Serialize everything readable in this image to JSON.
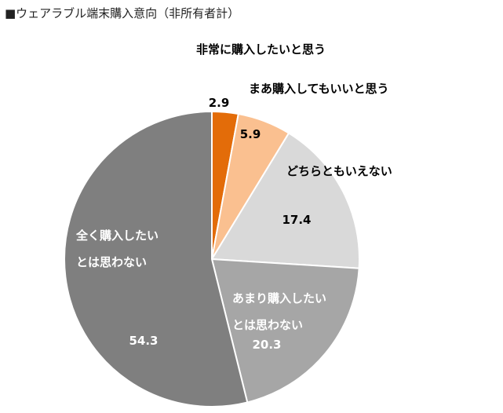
{
  "title": "■ウェアラブル端末購入意向（非所有者計）",
  "chart_data": {
    "type": "pie",
    "title": "■ウェアラブル端末購入意向（非所有者計）",
    "start": "12 o'clock, clockwise",
    "legend": "none (labels on/around slices)",
    "slices": [
      {
        "name": "非常に購入したいと思う",
        "value": 2.9,
        "color": "#e36c09",
        "label_lines": [
          "非常に購入したいと思う"
        ],
        "label_color": "#000000"
      },
      {
        "name": "まあ購入してもいいと思う",
        "value": 5.9,
        "color": "#fac090",
        "label_lines": [
          "まあ購入してもいいと思う"
        ],
        "label_color": "#000000"
      },
      {
        "name": "どちらともいえない",
        "value": 17.4,
        "color": "#d9d9d9",
        "label_lines": [
          "どちらともいえない"
        ],
        "label_color": "#000000"
      },
      {
        "name": "あまり購入したいとは思わない",
        "value": 20.3,
        "color": "#a6a6a6",
        "label_lines": [
          "あまり購入したい",
          "とは思わない"
        ],
        "label_color": "#ffffff"
      },
      {
        "name": "全く購入したいとは思わない",
        "value": 54.3,
        "color": "#7f7f7f",
        "label_lines": [
          "全く購入したい",
          "とは思わない"
        ],
        "label_color": "#ffffff"
      }
    ]
  }
}
